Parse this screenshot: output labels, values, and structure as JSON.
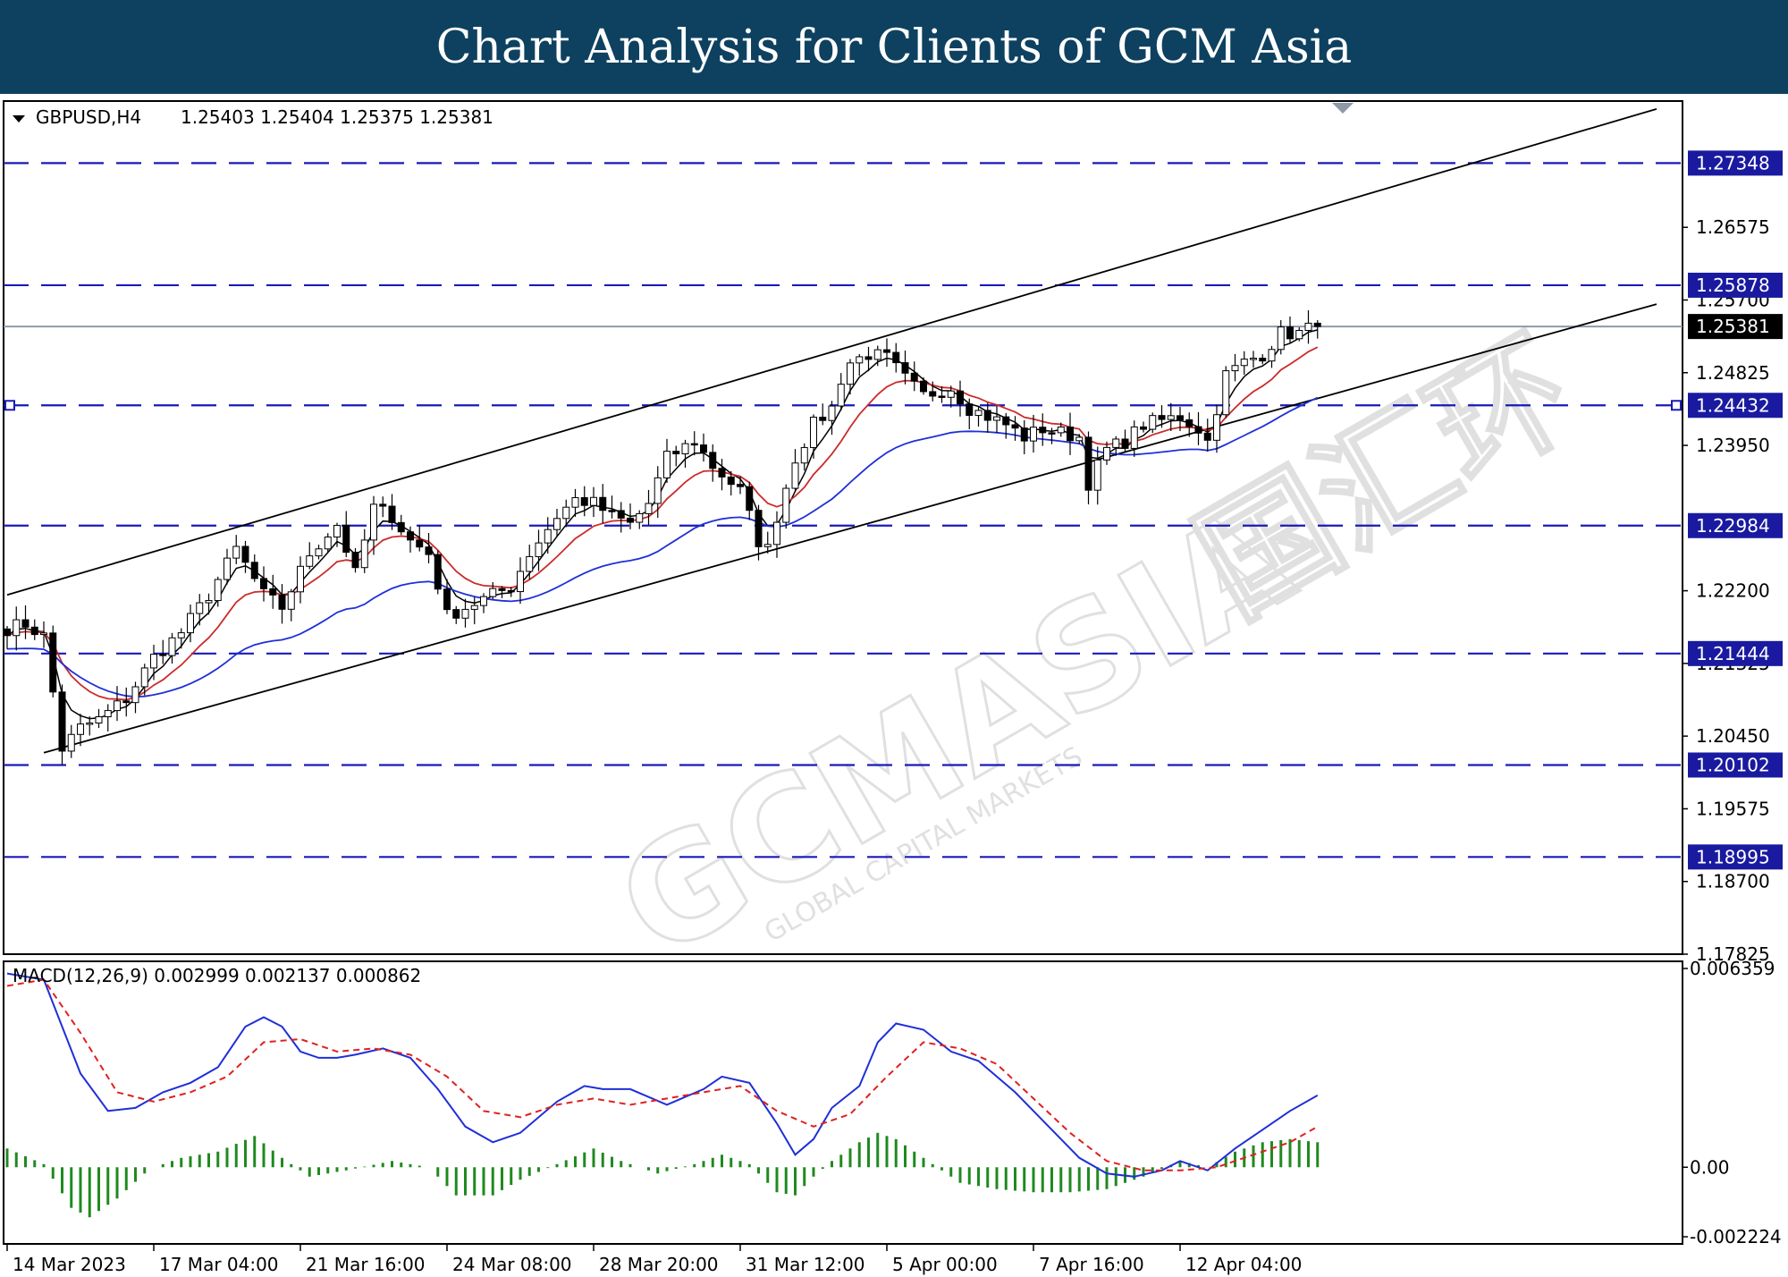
{
  "header": {
    "title": "Chart Analysis for Clients of GCM Asia"
  },
  "watermark": {
    "brand": "GCMASIA",
    "sub": "GLOBAL CAPITAL MARKETS",
    "chinese": "国汇环"
  },
  "chart_data": {
    "type": "candlestick",
    "symbol": "GBPUSD,H4",
    "info_values": "1.25403 1.25404 1.25375 1.25381",
    "ylim": [
      1.17825,
      1.28095
    ],
    "price_ticks": [
      1.26575,
      1.257,
      1.24825,
      1.2395,
      1.222,
      1.21325,
      1.2045,
      1.19575,
      1.187,
      1.17825
    ],
    "price_tick_labels": [
      "1.26575",
      "1.25700",
      "1.24825",
      "1.23950",
      "1.22200",
      "1.21325",
      "1.20450",
      "1.19575",
      "1.18700",
      "1.17825"
    ],
    "levels": [
      {
        "value": 1.27348,
        "label": "1.27348"
      },
      {
        "value": 1.25878,
        "label": "1.25878"
      },
      {
        "value": 1.24432,
        "label": "1.24432"
      },
      {
        "value": 1.22984,
        "label": "1.22984"
      },
      {
        "value": 1.21444,
        "label": "1.21444"
      },
      {
        "value": 1.20102,
        "label": "1.20102"
      },
      {
        "value": 1.18995,
        "label": "1.18995"
      }
    ],
    "current_price": {
      "value": 1.25381,
      "label": "1.25381"
    },
    "time_labels": [
      "14 Mar 2023",
      "17 Mar 04:00",
      "21 Mar 16:00",
      "24 Mar 08:00",
      "28 Mar 20:00",
      "31 Mar 12:00",
      "5 Apr 00:00",
      "7 Apr 16:00",
      "12 Apr 04:00"
    ],
    "time_label_bars": [
      0,
      16,
      32,
      48,
      64,
      80,
      96,
      112,
      128
    ],
    "close_path": [
      [
        0,
        1.2175
      ],
      [
        2,
        1.218
      ],
      [
        4,
        1.2165
      ],
      [
        6,
        1.203
      ],
      [
        8,
        1.2055
      ],
      [
        10,
        1.2065
      ],
      [
        13,
        1.209
      ],
      [
        16,
        1.214
      ],
      [
        19,
        1.217
      ],
      [
        22,
        1.2215
      ],
      [
        25,
        1.227
      ],
      [
        28,
        1.2215
      ],
      [
        30,
        1.22
      ],
      [
        33,
        1.2265
      ],
      [
        36,
        1.23
      ],
      [
        38,
        1.224
      ],
      [
        40,
        1.232
      ],
      [
        42,
        1.231
      ],
      [
        44,
        1.228
      ],
      [
        46,
        1.2265
      ],
      [
        48,
        1.219
      ],
      [
        50,
        1.22
      ],
      [
        52,
        1.221
      ],
      [
        55,
        1.2225
      ],
      [
        57,
        1.2265
      ],
      [
        60,
        1.231
      ],
      [
        62,
        1.233
      ],
      [
        64,
        1.2325
      ],
      [
        66,
        1.231
      ],
      [
        68,
        1.23
      ],
      [
        70,
        1.2325
      ],
      [
        72,
        1.238
      ],
      [
        75,
        1.24
      ],
      [
        77,
        1.237
      ],
      [
        80,
        1.234
      ],
      [
        82,
        1.228
      ],
      [
        83,
        1.227
      ],
      [
        84,
        1.231
      ],
      [
        86,
        1.238
      ],
      [
        88,
        1.242
      ],
      [
        90,
        1.244
      ],
      [
        91,
        1.2475
      ],
      [
        92,
        1.2495
      ],
      [
        94,
        1.2505
      ],
      [
        96,
        1.25
      ],
      [
        98,
        1.2475
      ],
      [
        100,
        1.2455
      ],
      [
        103,
        1.2465
      ],
      [
        105,
        1.244
      ],
      [
        107,
        1.243
      ],
      [
        109,
        1.242
      ],
      [
        111,
        1.2405
      ],
      [
        113,
        1.2415
      ],
      [
        115,
        1.241
      ],
      [
        117,
        1.2405
      ],
      [
        118,
        1.235
      ],
      [
        120,
        1.239
      ],
      [
        122,
        1.24
      ],
      [
        124,
        1.242
      ],
      [
        126,
        1.2425
      ],
      [
        128,
        1.243
      ],
      [
        130,
        1.2415
      ],
      [
        131,
        1.24
      ],
      [
        133,
        1.248
      ],
      [
        135,
        1.2495
      ],
      [
        137,
        1.2505
      ],
      [
        139,
        1.253
      ],
      [
        141,
        1.253
      ],
      [
        143,
        1.254
      ]
    ],
    "channel_lines": [
      {
        "start": [
          0,
          1.2215
        ],
        "end": [
          180,
          1.28
        ]
      },
      {
        "start": [
          4,
          1.2025
        ],
        "end": [
          180,
          1.2565
        ]
      }
    ],
    "indicators": [
      {
        "color": "#000000"
      },
      {
        "color": "#cc2b2b"
      },
      {
        "color": "#1f2fd8"
      }
    ],
    "macd": {
      "label": "MACD(12,26,9) 0.002999 0.002137 0.000862",
      "ylim": [
        -0.002224,
        0.006359
      ],
      "tick_labels": [
        {
          "value": 0.006359,
          "label": "0.006359"
        },
        {
          "value": 0.0,
          "label": "0.00"
        },
        {
          "value": -0.002224,
          "label": "-0.002224"
        }
      ],
      "macd_line": [
        [
          0,
          0.0062
        ],
        [
          4,
          0.006
        ],
        [
          6,
          0.0045
        ],
        [
          8,
          0.003
        ],
        [
          11,
          0.0018
        ],
        [
          14,
          0.0019
        ],
        [
          17,
          0.0024
        ],
        [
          20,
          0.0027
        ],
        [
          23,
          0.0032
        ],
        [
          26,
          0.0045
        ],
        [
          28,
          0.0048
        ],
        [
          30,
          0.0045
        ],
        [
          32,
          0.0037
        ],
        [
          34,
          0.0035
        ],
        [
          36,
          0.0035
        ],
        [
          38,
          0.0036
        ],
        [
          41,
          0.0038
        ],
        [
          44,
          0.0035
        ],
        [
          47,
          0.0025
        ],
        [
          50,
          0.0013
        ],
        [
          53,
          0.0008
        ],
        [
          56,
          0.0011
        ],
        [
          60,
          0.0021
        ],
        [
          63,
          0.0026
        ],
        [
          65,
          0.0025
        ],
        [
          68,
          0.0025
        ],
        [
          72,
          0.002
        ],
        [
          76,
          0.0025
        ],
        [
          78,
          0.0029
        ],
        [
          81,
          0.0027
        ],
        [
          84,
          0.0014
        ],
        [
          86,
          0.0004
        ],
        [
          88,
          0.0009
        ],
        [
          90,
          0.0019
        ],
        [
          93,
          0.0026
        ],
        [
          95,
          0.004
        ],
        [
          97,
          0.0046
        ],
        [
          100,
          0.0044
        ],
        [
          103,
          0.0037
        ],
        [
          106,
          0.0034
        ],
        [
          110,
          0.0024
        ],
        [
          114,
          0.0012
        ],
        [
          117,
          0.0003
        ],
        [
          120,
          -0.0002
        ],
        [
          123,
          -0.0003
        ],
        [
          126,
          -0.0001
        ],
        [
          128,
          0.0002
        ],
        [
          131,
          -0.0001
        ],
        [
          134,
          0.0006
        ],
        [
          137,
          0.0012
        ],
        [
          140,
          0.0018
        ],
        [
          143,
          0.0023
        ]
      ],
      "signal_line": [
        [
          0,
          0.0058
        ],
        [
          4,
          0.006
        ],
        [
          8,
          0.0043
        ],
        [
          12,
          0.0024
        ],
        [
          16,
          0.0021
        ],
        [
          20,
          0.0024
        ],
        [
          24,
          0.0029
        ],
        [
          28,
          0.004
        ],
        [
          32,
          0.0041
        ],
        [
          36,
          0.0037
        ],
        [
          40,
          0.0038
        ],
        [
          44,
          0.0036
        ],
        [
          48,
          0.0029
        ],
        [
          52,
          0.0018
        ],
        [
          56,
          0.0016
        ],
        [
          60,
          0.002
        ],
        [
          64,
          0.0022
        ],
        [
          68,
          0.002
        ],
        [
          72,
          0.0022
        ],
        [
          76,
          0.0024
        ],
        [
          80,
          0.0026
        ],
        [
          84,
          0.0018
        ],
        [
          88,
          0.0013
        ],
        [
          92,
          0.0017
        ],
        [
          96,
          0.0029
        ],
        [
          100,
          0.004
        ],
        [
          104,
          0.0038
        ],
        [
          108,
          0.0033
        ],
        [
          112,
          0.0022
        ],
        [
          116,
          0.0011
        ],
        [
          120,
          0.0002
        ],
        [
          124,
          -0.0001
        ],
        [
          128,
          -0.0001
        ],
        [
          132,
          0.0
        ],
        [
          136,
          0.0004
        ],
        [
          140,
          0.0008
        ],
        [
          143,
          0.0013
        ]
      ],
      "hist_peaks": [
        [
          0,
          0.0006
        ],
        [
          4,
          0.0001
        ],
        [
          7,
          -0.0013
        ],
        [
          9,
          -0.0016
        ],
        [
          12,
          -0.001
        ],
        [
          15,
          -0.0002
        ],
        [
          16,
          0.0
        ],
        [
          19,
          0.0003
        ],
        [
          23,
          0.0005
        ],
        [
          27,
          0.001
        ],
        [
          30,
          0.0003
        ],
        [
          33,
          -0.0003
        ],
        [
          37,
          -0.0001
        ],
        [
          42,
          0.0002
        ],
        [
          46,
          0.0
        ],
        [
          49,
          -0.0009
        ],
        [
          53,
          -0.0009
        ],
        [
          56,
          -0.0004
        ],
        [
          60,
          0.0001
        ],
        [
          64,
          0.0006
        ],
        [
          67,
          0.0002
        ],
        [
          71,
          -0.0002
        ],
        [
          75,
          0.0001
        ],
        [
          78,
          0.0004
        ],
        [
          81,
          0.0001
        ],
        [
          84,
          -0.0008
        ],
        [
          86,
          -0.0009
        ],
        [
          88,
          -0.0003
        ],
        [
          90,
          0.0002
        ],
        [
          93,
          0.0008
        ],
        [
          95,
          0.0011
        ],
        [
          97,
          0.0009
        ],
        [
          100,
          0.0003
        ],
        [
          104,
          -0.0005
        ],
        [
          108,
          -0.0007
        ],
        [
          112,
          -0.0008
        ],
        [
          116,
          -0.0008
        ],
        [
          120,
          -0.0007
        ],
        [
          124,
          -0.0003
        ],
        [
          128,
          0.0002
        ],
        [
          131,
          0.0
        ],
        [
          134,
          0.0005
        ],
        [
          137,
          0.0008
        ],
        [
          140,
          0.0009
        ],
        [
          143,
          0.0008
        ]
      ]
    }
  }
}
